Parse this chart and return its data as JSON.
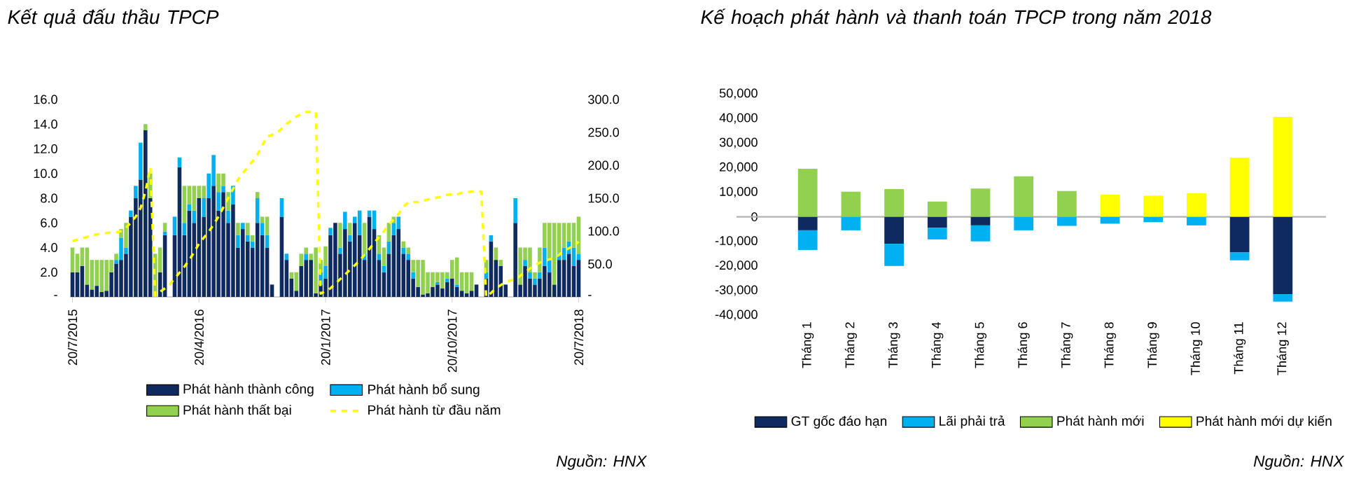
{
  "chart_data": [
    {
      "type": "bar",
      "title": "Kết quả đấu thầu TPCP",
      "stacked": true,
      "legend": "bottom",
      "categories": [
        "20/7/2015",
        null,
        null,
        null,
        null,
        null,
        null,
        null,
        null,
        null,
        null,
        null,
        null,
        null,
        null,
        null,
        null,
        null,
        null,
        null,
        null,
        null,
        null,
        null,
        null,
        null,
        "20/4/2016",
        null,
        null,
        null,
        null,
        null,
        null,
        null,
        null,
        null,
        null,
        null,
        null,
        null,
        null,
        null,
        null,
        null,
        null,
        null,
        null,
        null,
        null,
        null,
        null,
        null,
        "20/1/2017",
        null,
        null,
        null,
        null,
        null,
        null,
        null,
        null,
        null,
        null,
        null,
        null,
        null,
        null,
        null,
        null,
        null,
        null,
        null,
        null,
        null,
        null,
        null,
        null,
        null,
        "20/10/2017",
        null,
        null,
        null,
        null,
        null,
        null,
        null,
        null,
        null,
        null,
        null,
        null,
        null,
        null,
        null,
        null,
        null,
        null,
        null,
        null,
        null,
        null,
        null,
        null,
        null,
        "20/7/2018"
      ],
      "ylim": [
        0,
        16
      ],
      "yticks": [
        {
          "value": 0,
          "label": "-"
        },
        {
          "value": 2,
          "label": "2.0"
        },
        {
          "value": 4,
          "label": "4.0"
        },
        {
          "value": 6,
          "label": "6.0"
        },
        {
          "value": 8,
          "label": "8.0"
        },
        {
          "value": 10,
          "label": "10.0"
        },
        {
          "value": 12,
          "label": "12.0"
        },
        {
          "value": 14,
          "label": "14.0"
        },
        {
          "value": 16,
          "label": "16.0"
        }
      ],
      "y2lim": [
        0,
        300
      ],
      "y2ticks": [
        {
          "value": 0,
          "label": "-"
        },
        {
          "value": 50,
          "label": "50.0"
        },
        {
          "value": 100,
          "label": "100.0"
        },
        {
          "value": 150,
          "label": "150.0"
        },
        {
          "value": 200,
          "label": "200.0"
        },
        {
          "value": 250,
          "label": "250.0"
        },
        {
          "value": 300,
          "label": "300.0"
        }
      ],
      "series": [
        {
          "name": "Phát hành thành công",
          "color": "#0f2a5f",
          "values": [
            2.0,
            2.0,
            2.5,
            1.0,
            0.6,
            0.9,
            0.4,
            0.5,
            2.0,
            2.7,
            3.0,
            3.5,
            6.5,
            8.0,
            9.5,
            13.5,
            8.0,
            null,
            2.0,
            5.0,
            0,
            5.0,
            10.5,
            5.0,
            7.0,
            6.0,
            8.0,
            6.5,
            8.0,
            9.0,
            7.0,
            8.5,
            6.0,
            7.5,
            4.0,
            5.5,
            4.5,
            4.0,
            6.0,
            5.0,
            4.0,
            1.0,
            0,
            6.5,
            3.0,
            1.5,
            0.5,
            2.5,
            3.0,
            3.0,
            0.3,
            1.0,
            1.5,
            5.0,
            6.0,
            3.5,
            5.5,
            4.5,
            6.0,
            5.0,
            3.0,
            6.5,
            5.5,
            3.0,
            2.0,
            3.5,
            5.0,
            5.5,
            3.5,
            3.0,
            1.5,
            0.8,
            0.2,
            0.3,
            0.8,
            1.0,
            0.7,
            1.2,
            1.5,
            0.8,
            0.5,
            0.3,
            0.5,
            1.0,
            0,
            1.5,
            4.5,
            3.0,
            2.5,
            1.0,
            0,
            6.0,
            1.0,
            2.5,
            1.5,
            1.0,
            1.5,
            2.5,
            2.0,
            1.0,
            3.0,
            3.0,
            3.5,
            2.5,
            3.0
          ]
        },
        {
          "name": "Phát hành bổ sung",
          "color": "#00b0f0",
          "values": [
            0,
            0,
            0,
            0,
            0,
            0,
            0,
            0,
            0,
            0.3,
            1.8,
            0.5,
            0.5,
            1.0,
            3.0,
            0,
            0,
            0,
            0,
            0.3,
            0,
            1.5,
            0.8,
            1.0,
            0.5,
            1.0,
            0,
            1.5,
            2.0,
            2.5,
            1.5,
            0.5,
            1.0,
            1.5,
            1.0,
            0.5,
            0.5,
            0.5,
            2.0,
            1.0,
            1.0,
            0,
            0,
            1.5,
            0.5,
            0,
            0,
            0,
            0.5,
            0,
            0,
            1.0,
            1.0,
            0.6,
            0,
            0.5,
            1.4,
            0.5,
            0.5,
            2.0,
            0.5,
            0.5,
            1.5,
            0.5,
            0.5,
            1.0,
            1.0,
            1.0,
            0.5,
            0.5,
            0.5,
            0,
            0,
            0,
            0,
            0.2,
            0,
            0.3,
            0,
            0.2,
            0,
            0,
            0,
            0,
            0,
            0.5,
            0.5,
            0,
            0,
            0,
            0,
            2.0,
            0,
            0.5,
            0.5,
            0.5,
            0.5,
            1.5,
            1.0,
            0,
            0.5,
            1.0,
            1.0,
            1.5,
            0.5
          ]
        },
        {
          "name": "Phát hành thất bại",
          "color": "#92d050",
          "values": [
            2.0,
            1.5,
            1.5,
            3.0,
            2.4,
            2.1,
            2.6,
            2.5,
            1.0,
            0.5,
            0.7,
            2.0,
            0,
            0,
            0,
            0.5,
            2.0,
            3.5,
            2.0,
            0.7,
            0,
            0,
            0,
            3.0,
            1.5,
            2.0,
            1.0,
            1.0,
            0,
            0,
            1.5,
            1.0,
            1.5,
            0,
            1.0,
            0,
            1.0,
            0.5,
            0.5,
            0.5,
            1.5,
            0,
            0,
            0,
            0,
            0.5,
            1.5,
            1.0,
            0.5,
            0.5,
            3.7,
            1.0,
            1.6,
            0,
            0,
            2.0,
            0,
            1.0,
            0,
            0,
            2.5,
            0,
            0,
            1.5,
            1.5,
            1.5,
            0.5,
            0,
            0.5,
            0.5,
            1.0,
            2.2,
            2.8,
            1.7,
            1.2,
            0.8,
            1.3,
            0.5,
            1.5,
            2.2,
            1.5,
            1.7,
            1.5,
            0,
            0,
            1.0,
            0,
            1.0,
            0.5,
            0,
            0,
            0,
            3.0,
            1.0,
            2.0,
            0.5,
            2.0,
            2.0,
            3.0,
            5.0,
            2.5,
            2.0,
            1.5,
            2.0,
            3.0
          ]
        },
        {
          "name": "Phát hành từ đầu năm",
          "type": "line",
          "axis": "y2",
          "line_style": "dashed",
          "color": "#ffff00",
          "values": [
            85,
            87,
            89,
            91,
            94,
            95,
            96,
            97,
            98,
            98,
            100,
            105,
            113,
            122,
            135,
            160,
            197,
            2,
            8,
            13,
            19,
            28,
            37,
            46,
            56,
            68,
            81,
            90,
            99,
            110,
            122,
            136,
            150,
            164,
            178,
            188,
            197,
            206,
            216,
            230,
            244,
            246,
            249,
            256,
            263,
            268,
            274,
            278,
            281,
            281,
            281,
            5,
            9,
            13,
            20,
            27,
            34,
            41,
            48,
            55,
            64,
            73,
            82,
            91,
            100,
            109,
            118,
            126,
            137,
            144,
            144,
            144,
            146,
            148,
            150,
            151,
            153,
            155,
            156,
            156,
            158,
            159,
            160,
            160,
            160,
            0,
            6,
            13,
            18,
            23,
            25,
            27,
            32,
            38,
            43,
            48,
            52,
            55,
            57,
            59,
            64,
            70,
            74,
            77,
            84
          ]
        }
      ],
      "annotations": [
        "Nguồn: HNX"
      ]
    },
    {
      "type": "bar",
      "title": "Kế hoạch phát hành và thanh toán TPCP trong năm 2018",
      "stacked": true,
      "legend": "bottom",
      "categories": [
        "Tháng 1",
        "Tháng 2",
        "Tháng 3",
        "Tháng 4",
        "Tháng 5",
        "Tháng 6",
        "Tháng 7",
        "Tháng 8",
        "Tháng 9",
        "Tháng 10",
        "Tháng 11",
        "Tháng 12"
      ],
      "ylim": [
        -40000,
        50000
      ],
      "yticks": [
        {
          "value": -40000,
          "label": "-40,000"
        },
        {
          "value": -30000,
          "label": "-30,000"
        },
        {
          "value": -20000,
          "label": "-20,000"
        },
        {
          "value": -10000,
          "label": "-10,000"
        },
        0,
        {
          "value": 10000,
          "label": "10,000"
        },
        {
          "value": 20000,
          "label": "20,000"
        },
        {
          "value": 30000,
          "label": "30,000"
        },
        {
          "value": 40000,
          "label": "40,000"
        },
        {
          "value": 50000,
          "label": "50,000"
        }
      ],
      "series": [
        {
          "name": "GT gốc đáo hạn",
          "color": "#0f2a5f",
          "values": [
            -5500,
            null,
            -11000,
            -4500,
            -3500,
            null,
            null,
            null,
            null,
            null,
            -14500,
            -31500
          ]
        },
        {
          "name": "Lãi phải trả",
          "color": "#00b0f0",
          "values": [
            -8000,
            -5500,
            -9000,
            -4700,
            -6500,
            -5500,
            -3700,
            -2800,
            -2200,
            -3500,
            -3200,
            -3000
          ]
        },
        {
          "name": "Phát hành mới",
          "color": "#92d050",
          "values": [
            19500,
            10200,
            11300,
            6200,
            11500,
            16500,
            10500,
            null,
            null,
            null,
            null,
            null
          ]
        },
        {
          "name": "Phát hành mới dự kiến",
          "color": "#ffff00",
          "values": [
            null,
            null,
            null,
            null,
            null,
            null,
            null,
            9000,
            8600,
            9600,
            24000,
            40600
          ]
        }
      ],
      "annotations": [
        "Nguồn: HNX"
      ]
    }
  ]
}
